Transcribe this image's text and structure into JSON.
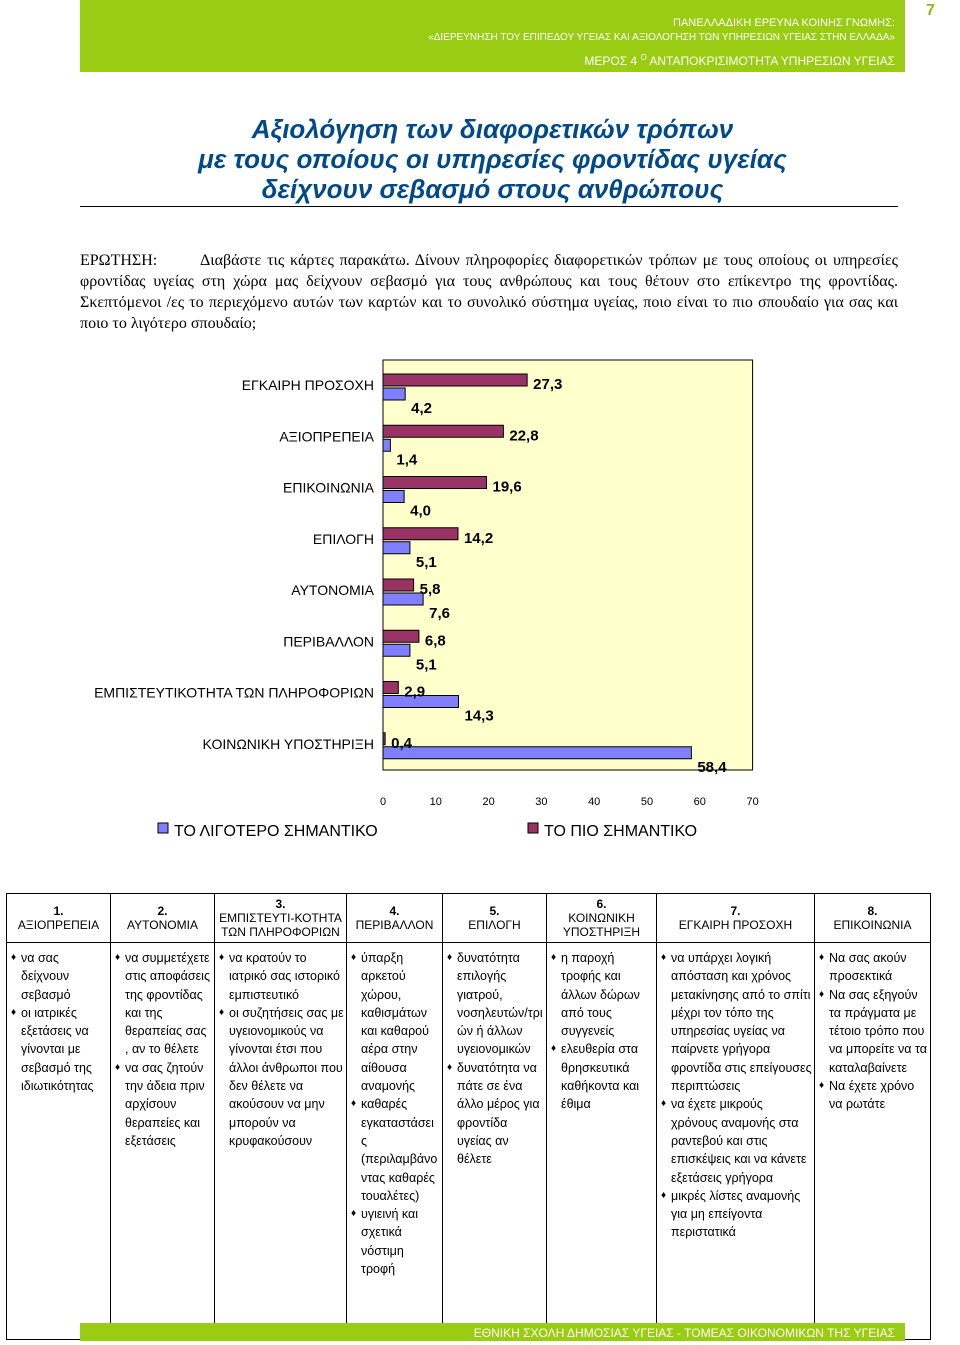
{
  "header": {
    "line1": "ΠΑΝΕΛΛΑΔΙΚΗ ΕΡΕΥΝΑ ΚΟΙΝΗΣ ΓΝΩΜΗΣ:",
    "line2": "«ΔΙΕΡΕΥΝΗΣΗ ΤΟΥ ΕΠΙΠΕΔΟΥ ΥΓΕΙΑΣ ΚΑΙ ΑΞΙΟΛΟΓΗΣΗ ΤΩΝ ΥΠΗΡΕΣΙΩΝ ΥΓΕΙΑΣ ΣΤΗΝ ΕΛΛΑΔΑ»",
    "part_prefix": "ΜΕΡΟΣ 4",
    "part_sup": "Ο",
    "part_rest": "ΑΝΤΑΠΟΚΡΙΣΙΜΟΤΗΤΑ ΥΠΗΡΕΣΙΩΝ ΥΓΕΙΑΣ",
    "page_number": "7",
    "band_color": "#9acc14"
  },
  "title": {
    "line1": "Αξιολόγηση των διαφορετικών τρόπων",
    "line2": "με τους οποίους οι υπηρεσίες φροντίδας υγείας",
    "line3": "δείχνουν σεβασμό στους ανθρώπους",
    "color": "#004a8c"
  },
  "question": {
    "label": "ΕΡΩΤΗΣΗ:",
    "text": "Διαβάστε τις κάρτες παρακάτω. Δίνουν πληροφορίες διαφορετικών τρόπων με τους οποίους οι υπηρεσίες φροντίδας υγείας στη χώρα μας δείχνουν σεβασμό για τους ανθρώπους και τους θέτουν στο επίκεντρο της φροντίδας. Σκεπτόμενοι /ες το περιεχόμενο αυτών των καρτών και το συνολικό σύστημα υγείας, ποιο είναι το πιο σπουδαίο για σας και ποιο το λιγότερο σπουδαίο;"
  },
  "chart_data": {
    "type": "bar",
    "orientation": "horizontal",
    "categories": [
      "ΕΓΚΑΙΡΗ ΠΡΟΣΟΧΗ",
      "ΑΞΙΟΠΡΕΠΕΙΑ",
      "ΕΠΙΚΟΙΝΩΝΙΑ",
      "ΕΠΙΛΟΓΗ",
      "ΑΥΤΟΝΟΜΙΑ",
      "ΠΕΡΙΒΑΛΛΟΝ",
      "ΕΜΠΙΣΤΕΥΤΙΚΟΤΗΤΑ ΤΩΝ ΠΛΗΡΟΦΟΡΙΩΝ",
      "ΚΟΙΝΩΝΙΚΗ ΥΠΟΣΤΗΡΙΞΗ"
    ],
    "series": [
      {
        "name": "ΤΟ ΛΙΓΟΤΕΡΟ ΣΗΜΑΝΤΙΚΟ",
        "color": "#8080ff",
        "values": [
          4.2,
          1.4,
          4.0,
          5.1,
          7.6,
          5.1,
          14.3,
          58.4
        ]
      },
      {
        "name": "ΤΟ ΠΙΟ ΣΗΜΑΝΤΙΚΟ",
        "color": "#993366",
        "values": [
          27.3,
          22.8,
          19.6,
          14.2,
          5.8,
          6.8,
          2.9,
          0.4
        ]
      }
    ],
    "data_labels": [
      [
        "4,2",
        "27,3"
      ],
      [
        "1,4",
        "22,8"
      ],
      [
        "4,0",
        "19,6"
      ],
      [
        "5,1",
        "14,2"
      ],
      [
        "7,6",
        "5,8"
      ],
      [
        "5,1",
        "6,8"
      ],
      [
        "14,3",
        "2,9"
      ],
      [
        "58,4",
        "0,4"
      ]
    ],
    "xlim": [
      0,
      70
    ],
    "xticks": [
      "0",
      "10",
      "20",
      "30",
      "40",
      "50",
      "60",
      "70"
    ],
    "plot_background": "#ffffcc",
    "legend_placement": "bottom",
    "grid": false
  },
  "table": {
    "columns": [
      {
        "num": "1.",
        "title": "ΑΞΙΟΠΡΕΠΕΙΑ",
        "items": [
          "να σας δείχνουν σεβασμό",
          "οι ιατρικές εξετάσεις να γίνονται με σεβασμό της ιδιωτικότητας"
        ]
      },
      {
        "num": "2.",
        "title": "ΑΥΤΟΝΟΜΙΑ",
        "items": [
          "να συμμετέχετε στις αποφάσεις της φροντίδας και της θεραπείας σας , αν το θέλετε",
          "να σας ζητούν την άδεια πριν αρχίσουν θεραπείες και εξετάσεις"
        ]
      },
      {
        "num": "3.",
        "title": "ΕΜΠΙΣΤΕΥΤΙ-ΚΟΤΗΤΑ ΤΩΝ ΠΛΗΡΟΦΟΡΙΩΝ",
        "items": [
          "να κρατούν το ιατρικό σας ιστορικό εμπιστευτικό",
          "οι συζητήσεις σας με υγειονομικούς να γίνονται έτσι που άλλοι άνθρωποι που δεν θέλετε να ακούσουν να μην μπορούν να κρυφακούσουν"
        ]
      },
      {
        "num": "4.",
        "title": "ΠΕΡΙΒΑΛΛΟΝ",
        "items": [
          "ύπαρξη αρκετού χώρου, καθισμάτων και καθαρού αέρα στην αίθουσα αναμονής",
          "καθαρές εγκαταστάσει ς (περιλαμβάνο ντας καθαρές τουαλέτες)",
          "υγιεινή και σχετικά νόστιμη τροφή"
        ]
      },
      {
        "num": "5.",
        "title": "ΕΠΙΛΟΓΗ",
        "items": [
          "δυνατότητα επιλογής γιατρού, νοσηλευτών/τρι ών ή άλλων υγειονομικών",
          "δυνατότητα να πάτε σε ένα άλλο μέρος για φροντίδα υγείας αν θέλετε"
        ]
      },
      {
        "num": "6.",
        "title": "ΚΟΙΝΩΝΙΚΗ ΥΠΟΣΤΗΡΙΞΗ",
        "items": [
          "η παροχή τροφής και άλλων δώρων από τους συγγενείς",
          "ελευθερία στα θρησκευτικά καθήκοντα και έθιμα"
        ]
      },
      {
        "num": "7.",
        "title": "ΕΓΚΑΙΡΗ ΠΡΟΣΟΧΗ",
        "items": [
          "να υπάρχει λογική απόσταση και χρόνος μετακίνησης από το σπίτι μέχρι τον τόπο της υπηρεσίας υγείας να παίρνετε γρήγορα φροντίδα στις επείγουσες περιπτώσεις",
          "να έχετε μικρούς χρόνους αναμονής στα ραντεβού και στις επισκέψεις και να κάνετε εξετάσεις γρήγορα",
          "μικρές λίστες αναμονής για μη επείγοντα περιστατικά"
        ]
      },
      {
        "num": "8.",
        "title": "ΕΠΙΚΟΙΝΩΝΙΑ",
        "items": [
          "Να σας ακούν προσεκτικά",
          "Να σας εξηγούν τα πράγματα με τέτοιο τρόπο που να μπορείτε να τα καταλαβαίνετε",
          "Να έχετε χρόνο να ρωτάτε"
        ]
      }
    ]
  },
  "footer": {
    "text": "ΕΘΝΙΚΗ ΣΧΟΛΗ ΔΗΜΟΣΙΑΣ ΥΓΕΙΑΣ - ΤΟΜΕΑΣ ΟΙΚΟΝΟΜΙΚΩΝ ΤΗΣ ΥΓΕΙΑΣ"
  }
}
